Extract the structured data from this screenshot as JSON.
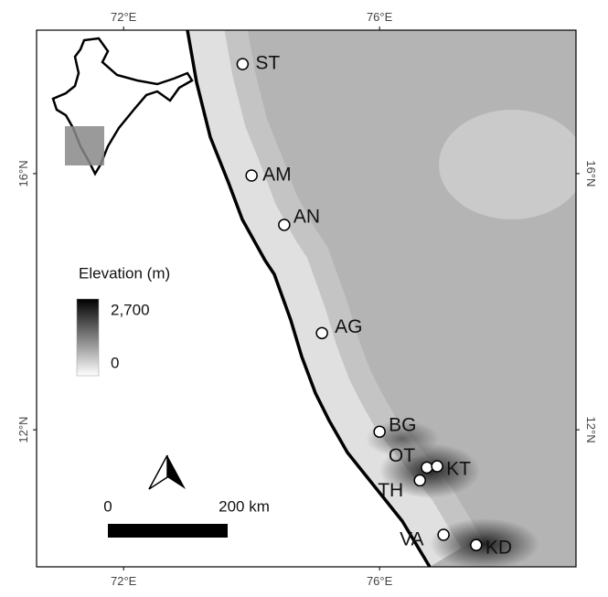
{
  "map": {
    "xlim": [
      70.64,
      79.07
    ],
    "ylim": [
      9.86,
      18.24
    ],
    "xticks": [
      {
        "value": 72,
        "label": "72°E"
      },
      {
        "value": 76,
        "label": "76°E"
      }
    ],
    "yticks": [
      {
        "value": 12,
        "label": "12°N"
      },
      {
        "value": 16,
        "label": "16°N"
      }
    ],
    "sites": [
      {
        "label": "ST",
        "lon": 73.86,
        "lat": 17.71
      },
      {
        "label": "AM",
        "lon": 74.0,
        "lat": 15.97
      },
      {
        "label": "AN",
        "lon": 74.51,
        "lat": 15.2
      },
      {
        "label": "AG",
        "lon": 75.1,
        "lat": 13.51
      },
      {
        "label": "BG",
        "lon": 76.0,
        "lat": 11.97
      },
      {
        "label": "OT",
        "lon": 76.74,
        "lat": 11.41
      },
      {
        "label": "KT",
        "lon": 76.9,
        "lat": 11.43
      },
      {
        "label": "TH",
        "lon": 76.63,
        "lat": 11.21
      },
      {
        "label": "VA",
        "lon": 77.0,
        "lat": 10.36
      },
      {
        "label": "KD",
        "lon": 77.51,
        "lat": 10.2
      }
    ]
  },
  "legend": {
    "title": "Elevation (m)",
    "max": {
      "value": 2700,
      "label": "2,700"
    },
    "min": 0
  },
  "scalebar": {
    "start": "0",
    "end": "200 km"
  }
}
